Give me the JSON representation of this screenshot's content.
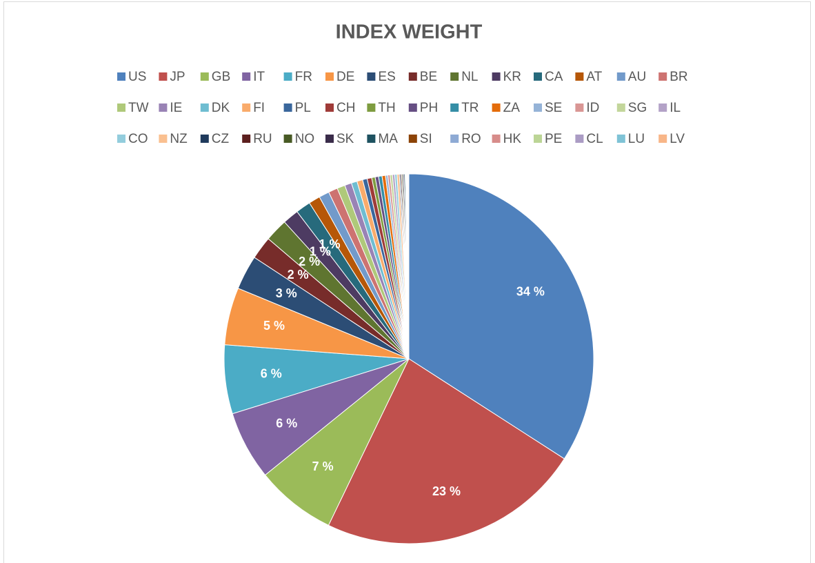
{
  "chart_data": {
    "type": "pie",
    "title": "INDEX WEIGHT",
    "legend": "top",
    "categories": [
      "US",
      "JP",
      "GB",
      "IT",
      "FR",
      "DE",
      "ES",
      "BE",
      "NL",
      "KR",
      "CA",
      "AT",
      "AU",
      "BR",
      "TW",
      "IE",
      "DK",
      "FI",
      "PL",
      "CH",
      "TH",
      "PH",
      "TR",
      "ZA",
      "SE",
      "ID",
      "SG",
      "IL",
      "CO",
      "NZ",
      "CZ",
      "RU",
      "NO",
      "SK",
      "MA",
      "SI",
      "RO",
      "HK",
      "PE",
      "CL",
      "LU",
      "LV"
    ],
    "values": [
      34,
      23,
      7,
      6,
      6,
      5,
      3,
      2,
      2,
      1.4,
      1.3,
      1,
      0.9,
      0.8,
      0.7,
      0.6,
      0.5,
      0.5,
      0.4,
      0.4,
      0.3,
      0.3,
      0.3,
      0.3,
      0.2,
      0.2,
      0.2,
      0.2,
      0.2,
      0.2,
      0.1,
      0.1,
      0.1,
      0.1,
      0.1,
      0.05,
      0.05,
      0.05,
      0.05,
      0.04,
      0.04,
      0.04
    ],
    "value_labels": [
      "34 %",
      "23 %",
      "7 %",
      "6 %",
      "6 %",
      "5 %",
      "3 %",
      "2 %",
      "2 %",
      "1 %",
      "1 %",
      null,
      null,
      null,
      null,
      null,
      null,
      null,
      null,
      null,
      null,
      null,
      null,
      null,
      null,
      null,
      null,
      null,
      null,
      null,
      null,
      null,
      null,
      null,
      null,
      null,
      null,
      null,
      null,
      null,
      null,
      null
    ],
    "colors": [
      "#4f81bd",
      "#c0504d",
      "#9bbb59",
      "#8064a2",
      "#4bacc6",
      "#f79646",
      "#2c4d75",
      "#772c2a",
      "#5f7530",
      "#4d3b62",
      "#276a7c",
      "#b65708",
      "#729aca",
      "#cd7371",
      "#afc97a",
      "#9983b5",
      "#6fbdd1",
      "#f9ab6b",
      "#3a679c",
      "#9f3b38",
      "#7e9c40",
      "#664f83",
      "#358ea6",
      "#e46c0a",
      "#95b3d7",
      "#d99694",
      "#c3d69b",
      "#b3a2c7",
      "#93cddd",
      "#fac090",
      "#1f3a5c",
      "#5c1f1e",
      "#485a25",
      "#3a2c4a",
      "#1e5260",
      "#8c4306",
      "#8eaad4",
      "#d78c8a",
      "#bcd596",
      "#ab9cc4",
      "#7fc3d6",
      "#f8b688"
    ]
  }
}
